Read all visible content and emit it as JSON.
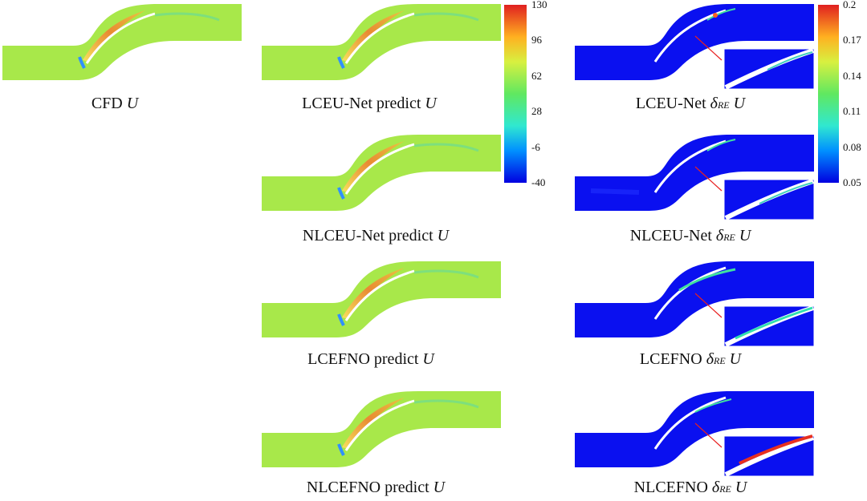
{
  "captions": {
    "cfd": {
      "prefix": "CFD ",
      "var": "U"
    },
    "lceunet_pred": {
      "prefix": "LCEU-Net predict ",
      "var": "U"
    },
    "nlceunet_pred": {
      "prefix": "NLCEU-Net predict ",
      "var": "U"
    },
    "lcefno_pred": {
      "prefix": "LCEFNO predict ",
      "var": "U"
    },
    "nlcefno_pred": {
      "prefix": "NLCEFNO predict ",
      "var": "U"
    },
    "lceunet_err": {
      "prefix": "LCEU-Net ",
      "delta": "δ",
      "sub": "RE",
      "var": " U"
    },
    "nlceunet_err": {
      "prefix": "NLCEU-Net ",
      "delta": "δ",
      "sub": "RE",
      "var": " U"
    },
    "lcefno_err": {
      "prefix": "LCEFNO ",
      "delta": "δ",
      "sub": "RE",
      "var": " U"
    },
    "nlcefno_err": {
      "prefix": "NLCEFNO ",
      "delta": "δ",
      "sub": "RE",
      "var": " U"
    }
  },
  "colorbar_velocity": {
    "ticks": [
      "130",
      "96",
      "62",
      "28",
      "-6",
      "-40"
    ]
  },
  "colorbar_error": {
    "ticks": [
      "0.2",
      "0.17",
      "0.14",
      "0.11",
      "0.08",
      "0.05"
    ]
  },
  "colors": {
    "field_base": "#a8e84a",
    "error_base": "#0a10f0",
    "arrow": "#e82020"
  }
}
